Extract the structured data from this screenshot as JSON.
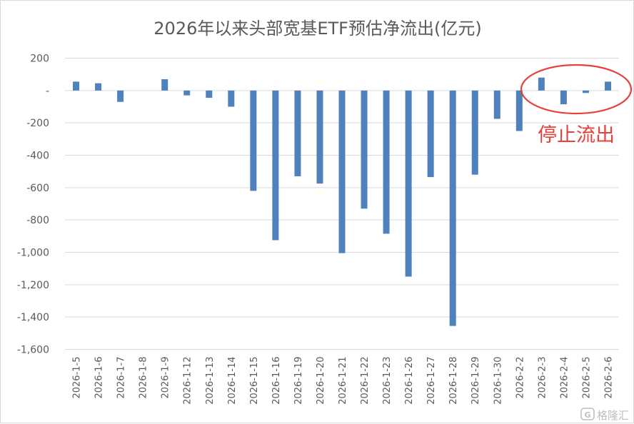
{
  "chart_data": {
    "type": "bar",
    "title": "2026年以来头部宽基ETF预估净流出(亿元)",
    "xlabel": "",
    "ylabel": "",
    "ylim": [
      -1600,
      200
    ],
    "yticks": [
      200,
      0,
      -200,
      -400,
      -600,
      -800,
      -1000,
      -1200,
      -1400,
      -1600
    ],
    "ytick_labels": [
      "200",
      "-",
      "-200",
      "-400",
      "-600",
      "-800",
      "-1,000",
      "-1,200",
      "-1,400",
      "-1,600"
    ],
    "grid": true,
    "legend": "none",
    "categories": [
      "2026-1-5",
      "2026-1-6",
      "2026-1-7",
      "2026-1-8",
      "2026-1-9",
      "2026-1-12",
      "2026-1-13",
      "2026-1-14",
      "2026-1-15",
      "2026-1-16",
      "2026-1-19",
      "2026-1-20",
      "2026-1-21",
      "2026-1-22",
      "2026-1-23",
      "2026-1-26",
      "2026-1-27",
      "2026-1-28",
      "2026-1-29",
      "2026-1-30",
      "2026-2-2",
      "2026-2-3",
      "2026-2-4",
      "2026-2-5",
      "2026-2-6"
    ],
    "values": [
      55,
      45,
      -70,
      0,
      70,
      -30,
      -45,
      -100,
      -620,
      -925,
      -530,
      -575,
      -1005,
      -730,
      -885,
      -1150,
      -535,
      -1455,
      -520,
      -175,
      -250,
      80,
      -85,
      -15,
      55
    ],
    "bar_color": "#4f81bd",
    "annotations": [
      {
        "text": "停止流出",
        "color": "#e8403a"
      }
    ]
  },
  "watermark": {
    "text": "格隆汇"
  }
}
